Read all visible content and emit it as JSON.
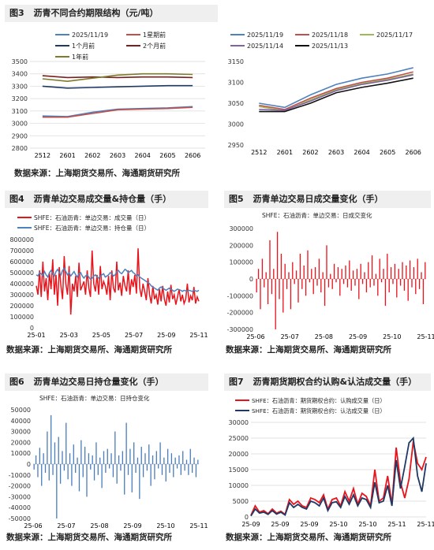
{
  "figures": {
    "fig3": {
      "label": "图3",
      "title": "沥青不同合约期限结构（元/吨）"
    },
    "fig4": {
      "label": "图4",
      "title": "沥青单边交易成交量&持仓量（手）"
    },
    "fig5": {
      "label": "图5",
      "title": "沥青单边交易日成交量变化（手）"
    },
    "fig6": {
      "label": "图6",
      "title": "沥青单边交易日持仓量变化（手）"
    },
    "fig7": {
      "label": "图7",
      "title": "沥青期货期权合约认购&认沽成交量（手）"
    }
  },
  "source_text": "数据来源：上海期货交易所、海通期货研究所",
  "colors": {
    "blue": "#4f81bd",
    "red": "#e8141c",
    "darkred": "#c0504d",
    "navy": "#1f3864",
    "olive": "#7f7a2a",
    "green": "#9bbb59",
    "purple": "#8064a2",
    "black": "#111111",
    "steel": "#4a7ebb"
  },
  "chart_data": [
    {
      "id": "fig3a",
      "type": "line",
      "categories": [
        "2512",
        "2601",
        "2602",
        "2603",
        "2604",
        "2605",
        "2606"
      ],
      "ylim": [
        2800,
        3500
      ],
      "yticks": [
        2800,
        2900,
        3000,
        3100,
        3200,
        3300,
        3400,
        3500
      ],
      "series": [
        {
          "name": "2025/11/19",
          "color": "#4f81bd",
          "values": [
            3060,
            3055,
            3090,
            3115,
            3120,
            3125,
            3135
          ]
        },
        {
          "name": "1星期前",
          "color": "#c0504d",
          "values": [
            3050,
            3050,
            3080,
            3110,
            3115,
            3120,
            3130
          ]
        },
        {
          "name": "1个月前",
          "color": "#1f3864",
          "values": [
            3300,
            3285,
            3290,
            3295,
            3300,
            3305,
            3305
          ]
        },
        {
          "name": "2个月前",
          "color": "#7b1f1f",
          "values": [
            3385,
            3370,
            3375,
            3370,
            3375,
            3375,
            3370
          ]
        },
        {
          "name": "1年前",
          "color": "#7f7a2a",
          "values": [
            3360,
            3340,
            3365,
            3390,
            3400,
            3400,
            3395
          ]
        }
      ]
    },
    {
      "id": "fig3b",
      "type": "line",
      "categories": [
        "2512",
        "2601",
        "2602",
        "2603",
        "2604",
        "2605",
        "2606"
      ],
      "ylim": [
        2950,
        3150
      ],
      "yticks": [
        2950,
        3000,
        3050,
        3100,
        3150
      ],
      "series": [
        {
          "name": "2025/11/19",
          "color": "#4f81bd",
          "values": [
            3050,
            3040,
            3070,
            3095,
            3110,
            3120,
            3135
          ]
        },
        {
          "name": "2025/11/18",
          "color": "#c0504d",
          "values": [
            3045,
            3035,
            3062,
            3085,
            3100,
            3110,
            3125
          ]
        },
        {
          "name": "2025/11/17",
          "color": "#9bbb59",
          "values": [
            3042,
            3032,
            3058,
            3082,
            3097,
            3107,
            3120
          ]
        },
        {
          "name": "2025/11/14",
          "color": "#8064a2",
          "values": [
            3035,
            3033,
            3055,
            3080,
            3095,
            3105,
            3118
          ]
        },
        {
          "name": "2025/11/13",
          "color": "#111111",
          "values": [
            3030,
            3030,
            3050,
            3075,
            3088,
            3098,
            3110
          ]
        }
      ]
    },
    {
      "id": "fig4",
      "type": "line",
      "xticks": [
        "25-01",
        "25-03",
        "25-05",
        "25-07",
        "25-09",
        "25-11"
      ],
      "ylim": [
        0,
        800000
      ],
      "yticks": [
        0,
        100000,
        200000,
        300000,
        400000,
        500000,
        600000,
        700000,
        800000
      ],
      "series": [
        {
          "name": "SHFE：石油沥青：单边交易：成交量（日）",
          "color": "#e8141c",
          "values": [
            380000,
            300000,
            520000,
            280000,
            600000,
            330000,
            450000,
            250000,
            500000,
            350000,
            620000,
            300000,
            480000,
            200000,
            550000,
            380000,
            260000,
            650000,
            400000,
            300000,
            560000,
            120000,
            400000,
            330000,
            470000,
            280000,
            590000,
            340000,
            380000,
            420000,
            300000,
            520000,
            360000,
            280000,
            700000,
            400000,
            330000,
            480000,
            300000,
            560000,
            350000,
            420000,
            380000,
            300000,
            470000,
            250000,
            520000,
            360000,
            320000,
            600000,
            340000,
            410000,
            290000,
            470000,
            380000,
            330000,
            520000,
            300000,
            440000,
            370000,
            480000,
            310000,
            720000,
            360000,
            280000,
            400000,
            330000,
            250000,
            450000,
            300000,
            220000,
            380000,
            260000,
            300000,
            210000,
            350000,
            240000,
            380000,
            260000,
            200000,
            330000,
            230000,
            390000,
            260000,
            300000,
            210000,
            280000,
            350000,
            240000,
            300000,
            220000,
            260000,
            400000,
            230000,
            290000,
            250000,
            370000,
            220000,
            280000,
            240000
          ]
        },
        {
          "name": "SHFE：石油沥青：单边交易：持仓量（日）",
          "color": "#4f81bd",
          "values": [
            480000,
            470000,
            500000,
            490000,
            470000,
            510000,
            480000,
            460000,
            500000,
            520000,
            490000,
            470000,
            510000,
            530000,
            500000,
            480000,
            520000,
            540000,
            510000,
            480000,
            500000,
            470000,
            490000,
            510000,
            480000,
            460000,
            490000,
            500000,
            470000,
            450000,
            470000,
            480000,
            460000,
            440000,
            450000,
            470000,
            480000,
            460000,
            450000,
            470000,
            480000,
            490000,
            460000,
            470000,
            480000,
            500000,
            490000,
            470000,
            480000,
            510000,
            520000,
            500000,
            490000,
            510000,
            530000,
            520000,
            500000,
            510000,
            520000,
            500000,
            490000,
            470000,
            480000,
            460000,
            450000,
            440000,
            430000,
            420000,
            410000,
            400000,
            380000,
            370000,
            360000,
            350000,
            340000,
            360000,
            370000,
            360000,
            350000,
            340000,
            350000,
            360000,
            350000,
            340000,
            330000,
            340000,
            350000,
            345000,
            340000,
            330000,
            340000,
            335000,
            330000,
            340000,
            335000,
            330000,
            340000,
            335000,
            330000,
            340000
          ]
        }
      ]
    },
    {
      "id": "fig5",
      "type": "bar",
      "legend": "SHFE：石油沥青：单边交易：日成交变化",
      "xticks": [
        "25-06",
        "25-07",
        "25-08",
        "25-09",
        "25-10",
        "25-11"
      ],
      "ylim": [
        -300000,
        300000
      ],
      "yticks": [
        -300000,
        -200000,
        -100000,
        0,
        100000,
        200000,
        300000
      ],
      "values": [
        -80000,
        60000,
        -180000,
        120000,
        -50000,
        40000,
        -150000,
        230000,
        -90000,
        60000,
        -300000,
        280000,
        -120000,
        150000,
        -200000,
        90000,
        -60000,
        40000,
        -180000,
        100000,
        -30000,
        50000,
        -140000,
        150000,
        -60000,
        80000,
        -100000,
        170000,
        -20000,
        60000,
        -90000,
        70000,
        -40000,
        120000,
        -80000,
        40000,
        -160000,
        200000,
        -50000,
        30000,
        -60000,
        90000,
        -20000,
        70000,
        -100000,
        60000,
        -30000,
        80000,
        -50000,
        110000,
        -70000,
        50000,
        -40000,
        60000,
        -120000,
        90000,
        -30000,
        40000,
        -80000,
        100000,
        -50000,
        140000,
        -40000,
        30000,
        -100000,
        120000,
        -20000,
        60000,
        -160000,
        150000,
        -80000,
        70000,
        -30000,
        90000,
        -110000,
        60000,
        -40000,
        100000,
        -70000,
        80000,
        -130000,
        110000,
        -50000,
        70000,
        -90000,
        120000,
        -60000,
        40000,
        -150000,
        100000
      ]
    },
    {
      "id": "fig6",
      "type": "bar",
      "legend": "SHFE：石油沥青：单边交易：日持仓变化",
      "xticks": [
        "25-06",
        "25-07",
        "25-08",
        "25-09",
        "25-10",
        "25-11"
      ],
      "ylim": [
        -50000,
        50000
      ],
      "yticks": [
        -50000,
        -40000,
        -30000,
        -20000,
        -10000,
        0,
        10000,
        20000,
        30000,
        40000,
        50000
      ],
      "values": [
        -5000,
        8000,
        -12000,
        15000,
        -20000,
        10000,
        -8000,
        30000,
        -15000,
        45000,
        -10000,
        20000,
        -50000,
        25000,
        -18000,
        12000,
        -6000,
        38000,
        -14000,
        10000,
        -20000,
        18000,
        -8000,
        6000,
        -25000,
        22000,
        -12000,
        16000,
        -30000,
        10000,
        -5000,
        8000,
        -15000,
        20000,
        -10000,
        6000,
        -22000,
        12000,
        -8000,
        14000,
        -4000,
        10000,
        -12000,
        30000,
        -18000,
        8000,
        -6000,
        12000,
        -28000,
        38000,
        -10000,
        14000,
        -26000,
        20000,
        -8000,
        6000,
        -32000,
        16000,
        -12000,
        10000,
        -6000,
        18000,
        -20000,
        8000,
        -14000,
        12000,
        -4000,
        20000,
        -10000,
        6000,
        -16000,
        14000,
        -8000,
        10000,
        -12000,
        6000,
        -4000,
        8000,
        -10000,
        12000,
        -6000,
        4000,
        -10000,
        14000,
        -8000,
        6000,
        -12000,
        4000
      ]
    },
    {
      "id": "fig7",
      "type": "line",
      "xticks": [
        "25-09",
        "25-09",
        "25-09",
        "25-10",
        "25-10",
        "25-11",
        "25-11"
      ],
      "ylim": [
        0,
        30000
      ],
      "yticks": [
        0,
        5000,
        10000,
        15000,
        20000,
        25000,
        30000
      ],
      "series": [
        {
          "name": "SHFE：石油沥青：期货期权合约：认购成交量（日）",
          "color": "#e8141c",
          "values": [
            500,
            3500,
            1500,
            2000,
            1000,
            2500,
            1200,
            1800,
            800,
            5500,
            4000,
            5000,
            3500,
            3000,
            6000,
            5500,
            4500,
            7000,
            2500,
            5500,
            6000,
            3500,
            8000,
            5000,
            9000,
            4000,
            7500,
            6500,
            3500,
            15000,
            5000,
            6000,
            13000,
            4000,
            22000,
            11000,
            6000,
            12000,
            24000,
            17000,
            15000,
            19000
          ]
        },
        {
          "name": "SHFE：石油沥青：期货期权合约：认沽成交量（日）",
          "color": "#1f3864",
          "values": [
            300,
            2500,
            1200,
            1500,
            800,
            2000,
            900,
            1500,
            600,
            4500,
            3000,
            4000,
            3000,
            2500,
            5000,
            4500,
            3500,
            6000,
            2000,
            4500,
            4800,
            3000,
            6500,
            4000,
            7000,
            3500,
            6000,
            5500,
            3000,
            11000,
            4500,
            5000,
            10000,
            3500,
            18000,
            9000,
            16000,
            23500,
            25000,
            13000,
            8000,
            17000
          ]
        }
      ]
    }
  ]
}
